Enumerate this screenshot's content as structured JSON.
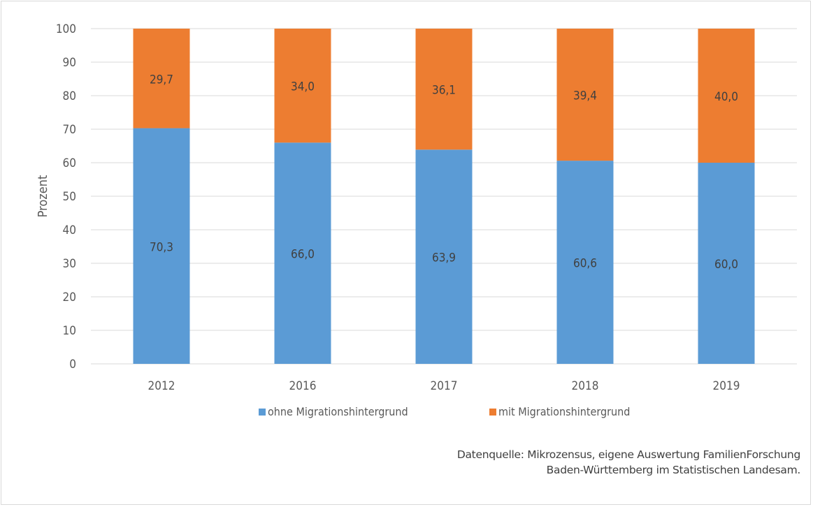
{
  "chart_data": {
    "type": "bar",
    "stacked": true,
    "title": "",
    "ylabel": "Prozent",
    "xlabel": "",
    "ylim": [
      0,
      100
    ],
    "yticks": [
      0,
      10,
      20,
      30,
      40,
      50,
      60,
      70,
      80,
      90,
      100
    ],
    "categories": [
      "2012",
      "2016",
      "2017",
      "2018",
      "2019"
    ],
    "series": [
      {
        "name": "ohne Migrationshintergrund",
        "color": "#5b9bd5",
        "values": [
          70.3,
          66.0,
          63.9,
          60.6,
          60.0
        ],
        "labels": [
          "70,3",
          "66,0",
          "63,9",
          "60,6",
          "60,0"
        ]
      },
      {
        "name": "mit Migrationshintergrund",
        "color": "#ed7d31",
        "values": [
          29.7,
          34.0,
          36.1,
          39.4,
          40.0
        ],
        "labels": [
          "29,7",
          "34,0",
          "36,1",
          "39,4",
          "40,0"
        ]
      }
    ],
    "grid": true,
    "legend_position": "bottom"
  },
  "source": {
    "line1": "Datenquelle: Mikrozensus, eigene Auswertung FamilienForschung",
    "line2": "Baden-Württemberg im Statistischen Landesam."
  },
  "colors": {
    "grid": "#d9d9d9",
    "text": "#595959",
    "label": "#404040"
  }
}
